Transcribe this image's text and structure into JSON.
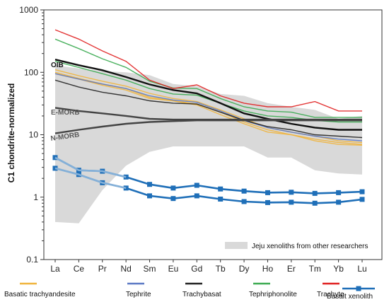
{
  "chart_data": {
    "type": "line",
    "ylabel": "C1 chondrite-normalized",
    "yscale": "log",
    "ylim": [
      0.1,
      1000
    ],
    "yticks": [
      "0.1",
      "1",
      "10",
      "100",
      "1000"
    ],
    "categories": [
      "La",
      "Ce",
      "Pr",
      "Nd",
      "Sm",
      "Eu",
      "Gd",
      "Tb",
      "Dy",
      "Ho",
      "Er",
      "Tm",
      "Yb",
      "Lu"
    ],
    "shaded_range": {
      "label": "Jeju xenoliths from other researchers",
      "color": "#d9d9d9",
      "upper": [
        130,
        115,
        105,
        100,
        90,
        65,
        60,
        45,
        42,
        32,
        28,
        25,
        18,
        20
      ],
      "lower": [
        0.4,
        0.38,
        1.3,
        3.2,
        5.3,
        6.5,
        6.5,
        6.5,
        6.5,
        4.3,
        4.3,
        2.7,
        2.4,
        2.3
      ]
    },
    "references": [
      {
        "name": "OIB",
        "color": "#111111",
        "values": [
          160,
          130,
          108,
          84,
          64,
          52,
          46,
          32,
          22,
          18,
          15,
          13,
          12,
          12
        ]
      },
      {
        "name": "E-MORB",
        "color": "#444444",
        "values": [
          27,
          24,
          22,
          20,
          18,
          17.5,
          17.5,
          17.5,
          17.5,
          17.5,
          17.5,
          17.5,
          17.5,
          17.5
        ]
      },
      {
        "name": "N-MORB",
        "color": "#444444",
        "values": [
          10.5,
          12,
          13.5,
          15,
          16,
          16.5,
          17,
          17,
          17,
          17,
          17,
          17,
          17,
          17
        ]
      }
    ],
    "series": [
      {
        "name": "Basatic trachyandesite",
        "color": "#f0b43c",
        "lines": [
          [
            110,
            88,
            72,
            60,
            46,
            38,
            34,
            25,
            18,
            13,
            11,
            9.5,
            8,
            7.5
          ],
          [
            100,
            80,
            65,
            55,
            40,
            35,
            31,
            23,
            16,
            12,
            10,
            8.5,
            7.5,
            7
          ],
          [
            95,
            78,
            62,
            52,
            38,
            35,
            30,
            21,
            15,
            11,
            10,
            8,
            7,
            6.8
          ]
        ]
      },
      {
        "name": "Tephrite",
        "color": "#5a78c4",
        "lines": [
          [
            95,
            78,
            65,
            55,
            42,
            36,
            33,
            24,
            17,
            13,
            11,
            9.5,
            8.5,
            8
          ]
        ]
      },
      {
        "name": "Trachybasat",
        "color": "#222222",
        "lines": [
          [
            75,
            58,
            48,
            42,
            35,
            32,
            31,
            23,
            17,
            13.5,
            12,
            10,
            9.5,
            9
          ]
        ]
      },
      {
        "name": "Tephriphonolite",
        "color": "#3aaa50",
        "lines": [
          [
            340,
            240,
            165,
            120,
            72,
            56,
            55,
            38,
            28,
            24,
            23,
            19,
            19,
            19
          ],
          [
            150,
            120,
            95,
            75,
            55,
            45,
            43,
            32,
            24,
            20,
            19,
            17,
            16,
            16
          ]
        ]
      },
      {
        "name": "Trachyte",
        "color": "#e02020",
        "lines": [
          [
            480,
            340,
            220,
            150,
            75,
            55,
            63,
            42,
            32,
            28,
            28,
            34,
            24,
            24
          ]
        ]
      },
      {
        "name": "Basalt xenolith",
        "color": "#1f6fb8",
        "marker": "square",
        "lines": [
          [
            4.3,
            2.7,
            2.6,
            2.1,
            1.6,
            1.4,
            1.55,
            1.35,
            1.25,
            1.18,
            1.2,
            1.15,
            1.18,
            1.22
          ],
          [
            2.9,
            2.3,
            1.7,
            1.4,
            1.05,
            0.95,
            1.05,
            0.93,
            0.85,
            0.82,
            0.83,
            0.8,
            0.83,
            0.92
          ]
        ]
      }
    ],
    "legend_position": "bottom"
  }
}
